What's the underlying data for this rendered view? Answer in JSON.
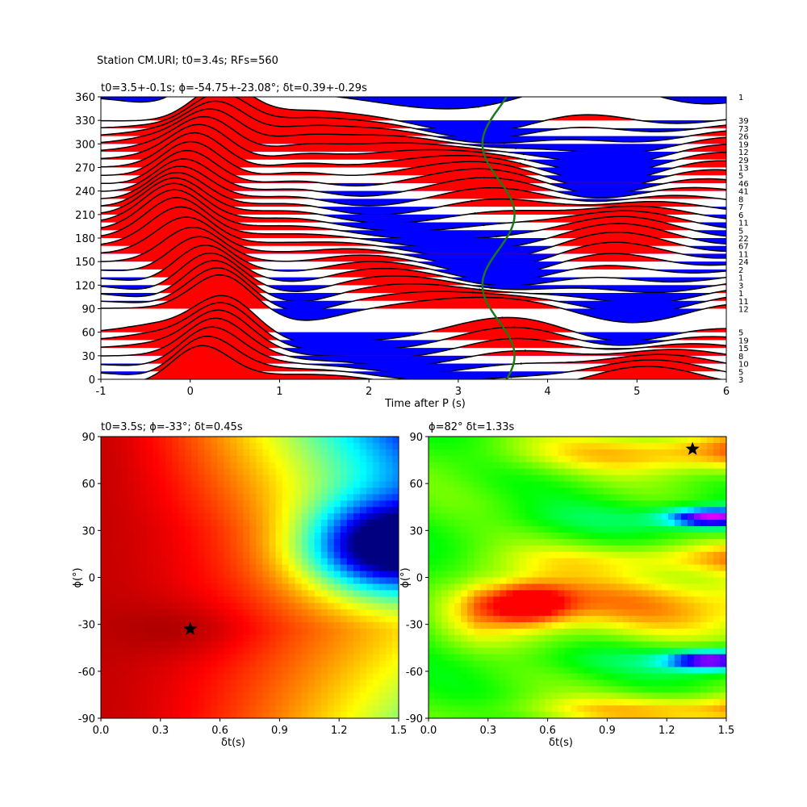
{
  "figure": {
    "suptitle": "Station CM.URI; t0=3.4s; RFs=560"
  },
  "chart_data": [
    {
      "type": "line",
      "panel": "receiver-function-traces",
      "title": "t0=3.5+-0.1s; ϕ=-54.75+-23.08°; δt=0.39+-0.29s",
      "xlabel": "Time after P (s)",
      "ylabel": "",
      "xlim": [
        -1,
        6
      ],
      "ylim": [
        0,
        360
      ],
      "xticks": [
        -1,
        0,
        1,
        2,
        3,
        4,
        5,
        6
      ],
      "yticks": [
        0,
        30,
        60,
        90,
        120,
        150,
        180,
        210,
        240,
        270,
        300,
        330,
        360
      ],
      "positive_fill": "#ff0000",
      "negative_fill": "#0000ff",
      "model_curve_color": "#1a7a1a",
      "traces": [
        {
          "baz": 0,
          "count": 3
        },
        {
          "baz": 10,
          "count": 5
        },
        {
          "baz": 20,
          "count": 10
        },
        {
          "baz": 30,
          "count": 8
        },
        {
          "baz": 40,
          "count": 15
        },
        {
          "baz": 50,
          "count": 19
        },
        {
          "baz": 60,
          "count": 5
        },
        {
          "baz": 90,
          "count": 12
        },
        {
          "baz": 100,
          "count": 11
        },
        {
          "baz": 110,
          "count": 1
        },
        {
          "baz": 120,
          "count": 3
        },
        {
          "baz": 130,
          "count": 1
        },
        {
          "baz": 140,
          "count": 2
        },
        {
          "baz": 150,
          "count": 24
        },
        {
          "baz": 160,
          "count": 11
        },
        {
          "baz": 170,
          "count": 67
        },
        {
          "baz": 180,
          "count": 22
        },
        {
          "baz": 190,
          "count": 5
        },
        {
          "baz": 200,
          "count": 11
        },
        {
          "baz": 210,
          "count": 6
        },
        {
          "baz": 220,
          "count": 7
        },
        {
          "baz": 230,
          "count": 8
        },
        {
          "baz": 240,
          "count": 41
        },
        {
          "baz": 250,
          "count": 46
        },
        {
          "baz": 260,
          "count": 5
        },
        {
          "baz": 270,
          "count": 13
        },
        {
          "baz": 280,
          "count": 29
        },
        {
          "baz": 290,
          "count": 12
        },
        {
          "baz": 300,
          "count": 19
        },
        {
          "baz": 310,
          "count": 26
        },
        {
          "baz": 320,
          "count": 73
        },
        {
          "baz": 330,
          "count": 39
        },
        {
          "baz": 360,
          "count": 1
        }
      ]
    },
    {
      "type": "heatmap",
      "panel": "splitting-grid-left",
      "title": "t0=3.5s; ϕ=-33°; δt=0.45s",
      "xlabel": "δt(s)",
      "ylabel": "ϕ(°)",
      "xlim": [
        0,
        1.5
      ],
      "ylim": [
        -90,
        90
      ],
      "xticks": [
        "0.0",
        "0.3",
        "0.6",
        "0.9",
        "1.2",
        "1.5"
      ],
      "yticks": [
        "-90",
        "-60",
        "-30",
        "0",
        "30",
        "60",
        "90"
      ],
      "best": {
        "dt": 0.45,
        "phi": -33
      }
    },
    {
      "type": "heatmap",
      "panel": "splitting-grid-right",
      "title": "ϕ=82° δt=1.33s",
      "xlabel": "δt(s)",
      "ylabel": "ϕ(°)",
      "xlim": [
        0,
        1.5
      ],
      "ylim": [
        -90,
        90
      ],
      "xticks": [
        "0.0",
        "0.3",
        "0.6",
        "0.9",
        "1.2",
        "1.5"
      ],
      "yticks": [
        "-90",
        "-60",
        "-30",
        "0",
        "30",
        "60",
        "90"
      ],
      "best": {
        "dt": 1.33,
        "phi": 82
      }
    }
  ]
}
